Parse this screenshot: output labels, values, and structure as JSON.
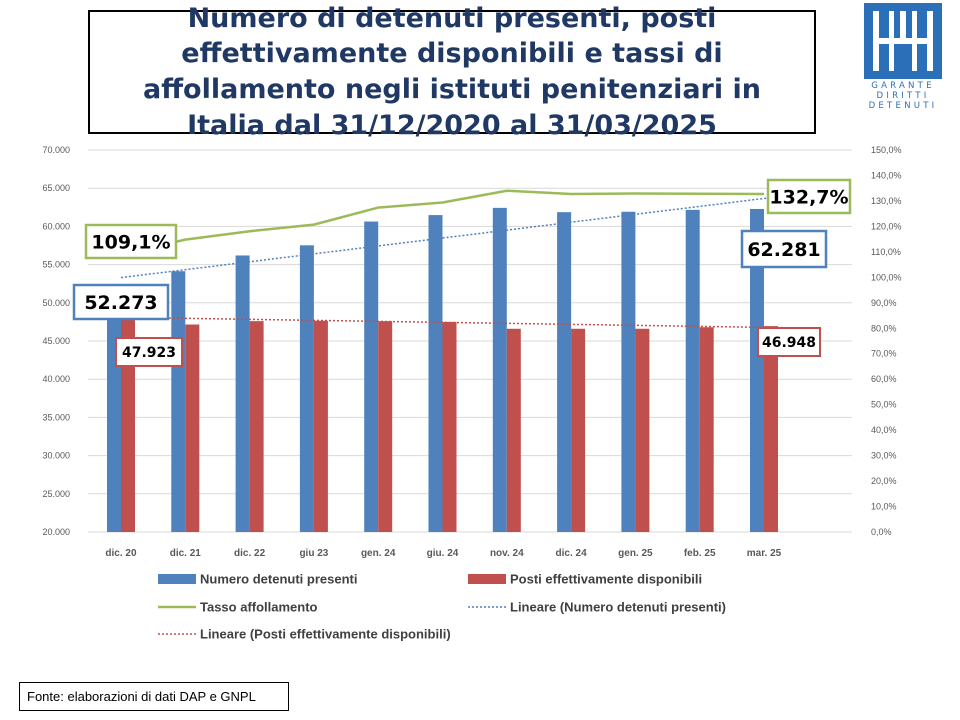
{
  "title": "Numero di detenuti presenti, posti effettivamente disponibili e tassi di affollamento negli istituti penitenziari in Italia dal 31/12/2020 al 31/03/2025",
  "logo": {
    "lines": [
      "GARANTE",
      "DIRITTI",
      "DETENUTI"
    ],
    "icon": "building-icon",
    "color": "#2a6fb7"
  },
  "source": "Fonte: elaborazioni di dati DAP e GNPL",
  "chart_data": {
    "type": "bar",
    "categories": [
      "dic. 20",
      "dic. 21",
      "dic. 22",
      "giu 23",
      "gen. 24",
      "giu. 24",
      "nov. 24",
      "dic. 24",
      "gen. 25",
      "feb. 25",
      "mar. 25"
    ],
    "series": [
      {
        "name": "Numero detenuti presenti",
        "type": "bar",
        "axis": "left",
        "color": "#4f81bd",
        "values": [
          52273,
          54134,
          56196,
          57525,
          60637,
          61480,
          62427,
          61861,
          61916,
          62165,
          62281
        ]
      },
      {
        "name": "Posti effettivamente disponibili",
        "type": "bar",
        "axis": "left",
        "color": "#c0504d",
        "values": [
          47923,
          47159,
          47600,
          47650,
          47600,
          47500,
          46600,
          46600,
          46600,
          46800,
          46948
        ]
      },
      {
        "name": "Tasso affollamento",
        "type": "line",
        "axis": "right",
        "color": "#9bbb59",
        "values": [
          109.1,
          114.8,
          118.1,
          120.7,
          127.4,
          129.4,
          134.0,
          132.7,
          132.9,
          132.8,
          132.7
        ]
      }
    ],
    "trendlines": [
      {
        "name": "Lineare (Numero detenuti presenti)",
        "of": "Numero detenuti presenti",
        "color": "#4f81bd",
        "style": "dotted",
        "start": 53300,
        "end": 64300
      },
      {
        "name": "Lineare (Posti effettivamente disponibili)",
        "of": "Posti effettivamente disponibili",
        "color": "#c0504d",
        "style": "dotted",
        "start": 48100,
        "end": 46700
      }
    ],
    "left_axis": {
      "ylim": [
        20000,
        70000
      ],
      "step": 5000,
      "tick_labels": [
        "20.000",
        "25.000",
        "30.000",
        "35.000",
        "40.000",
        "45.000",
        "50.000",
        "55.000",
        "60.000",
        "65.000",
        "70.000"
      ]
    },
    "right_axis": {
      "ylim": [
        0,
        150
      ],
      "step": 10,
      "tick_labels": [
        "0,0%",
        "10,0%",
        "20,0%",
        "30,0%",
        "40,0%",
        "50,0%",
        "60,0%",
        "70,0%",
        "80,0%",
        "90,0%",
        "100,0%",
        "110,0%",
        "120,0%",
        "130,0%",
        "140,0%",
        "150,0%"
      ]
    },
    "grid": true,
    "legend": {
      "position": "bottom"
    },
    "annotations": [
      {
        "label": "109,1%",
        "color": "#9bbb59"
      },
      {
        "label": "132,7%",
        "color": "#9bbb59"
      },
      {
        "label": "52.273",
        "color": "#4f81bd"
      },
      {
        "label": "62.281",
        "color": "#4f81bd"
      },
      {
        "label": "47.923",
        "color": "#c0504d"
      },
      {
        "label": "46.948",
        "color": "#c0504d"
      }
    ]
  }
}
